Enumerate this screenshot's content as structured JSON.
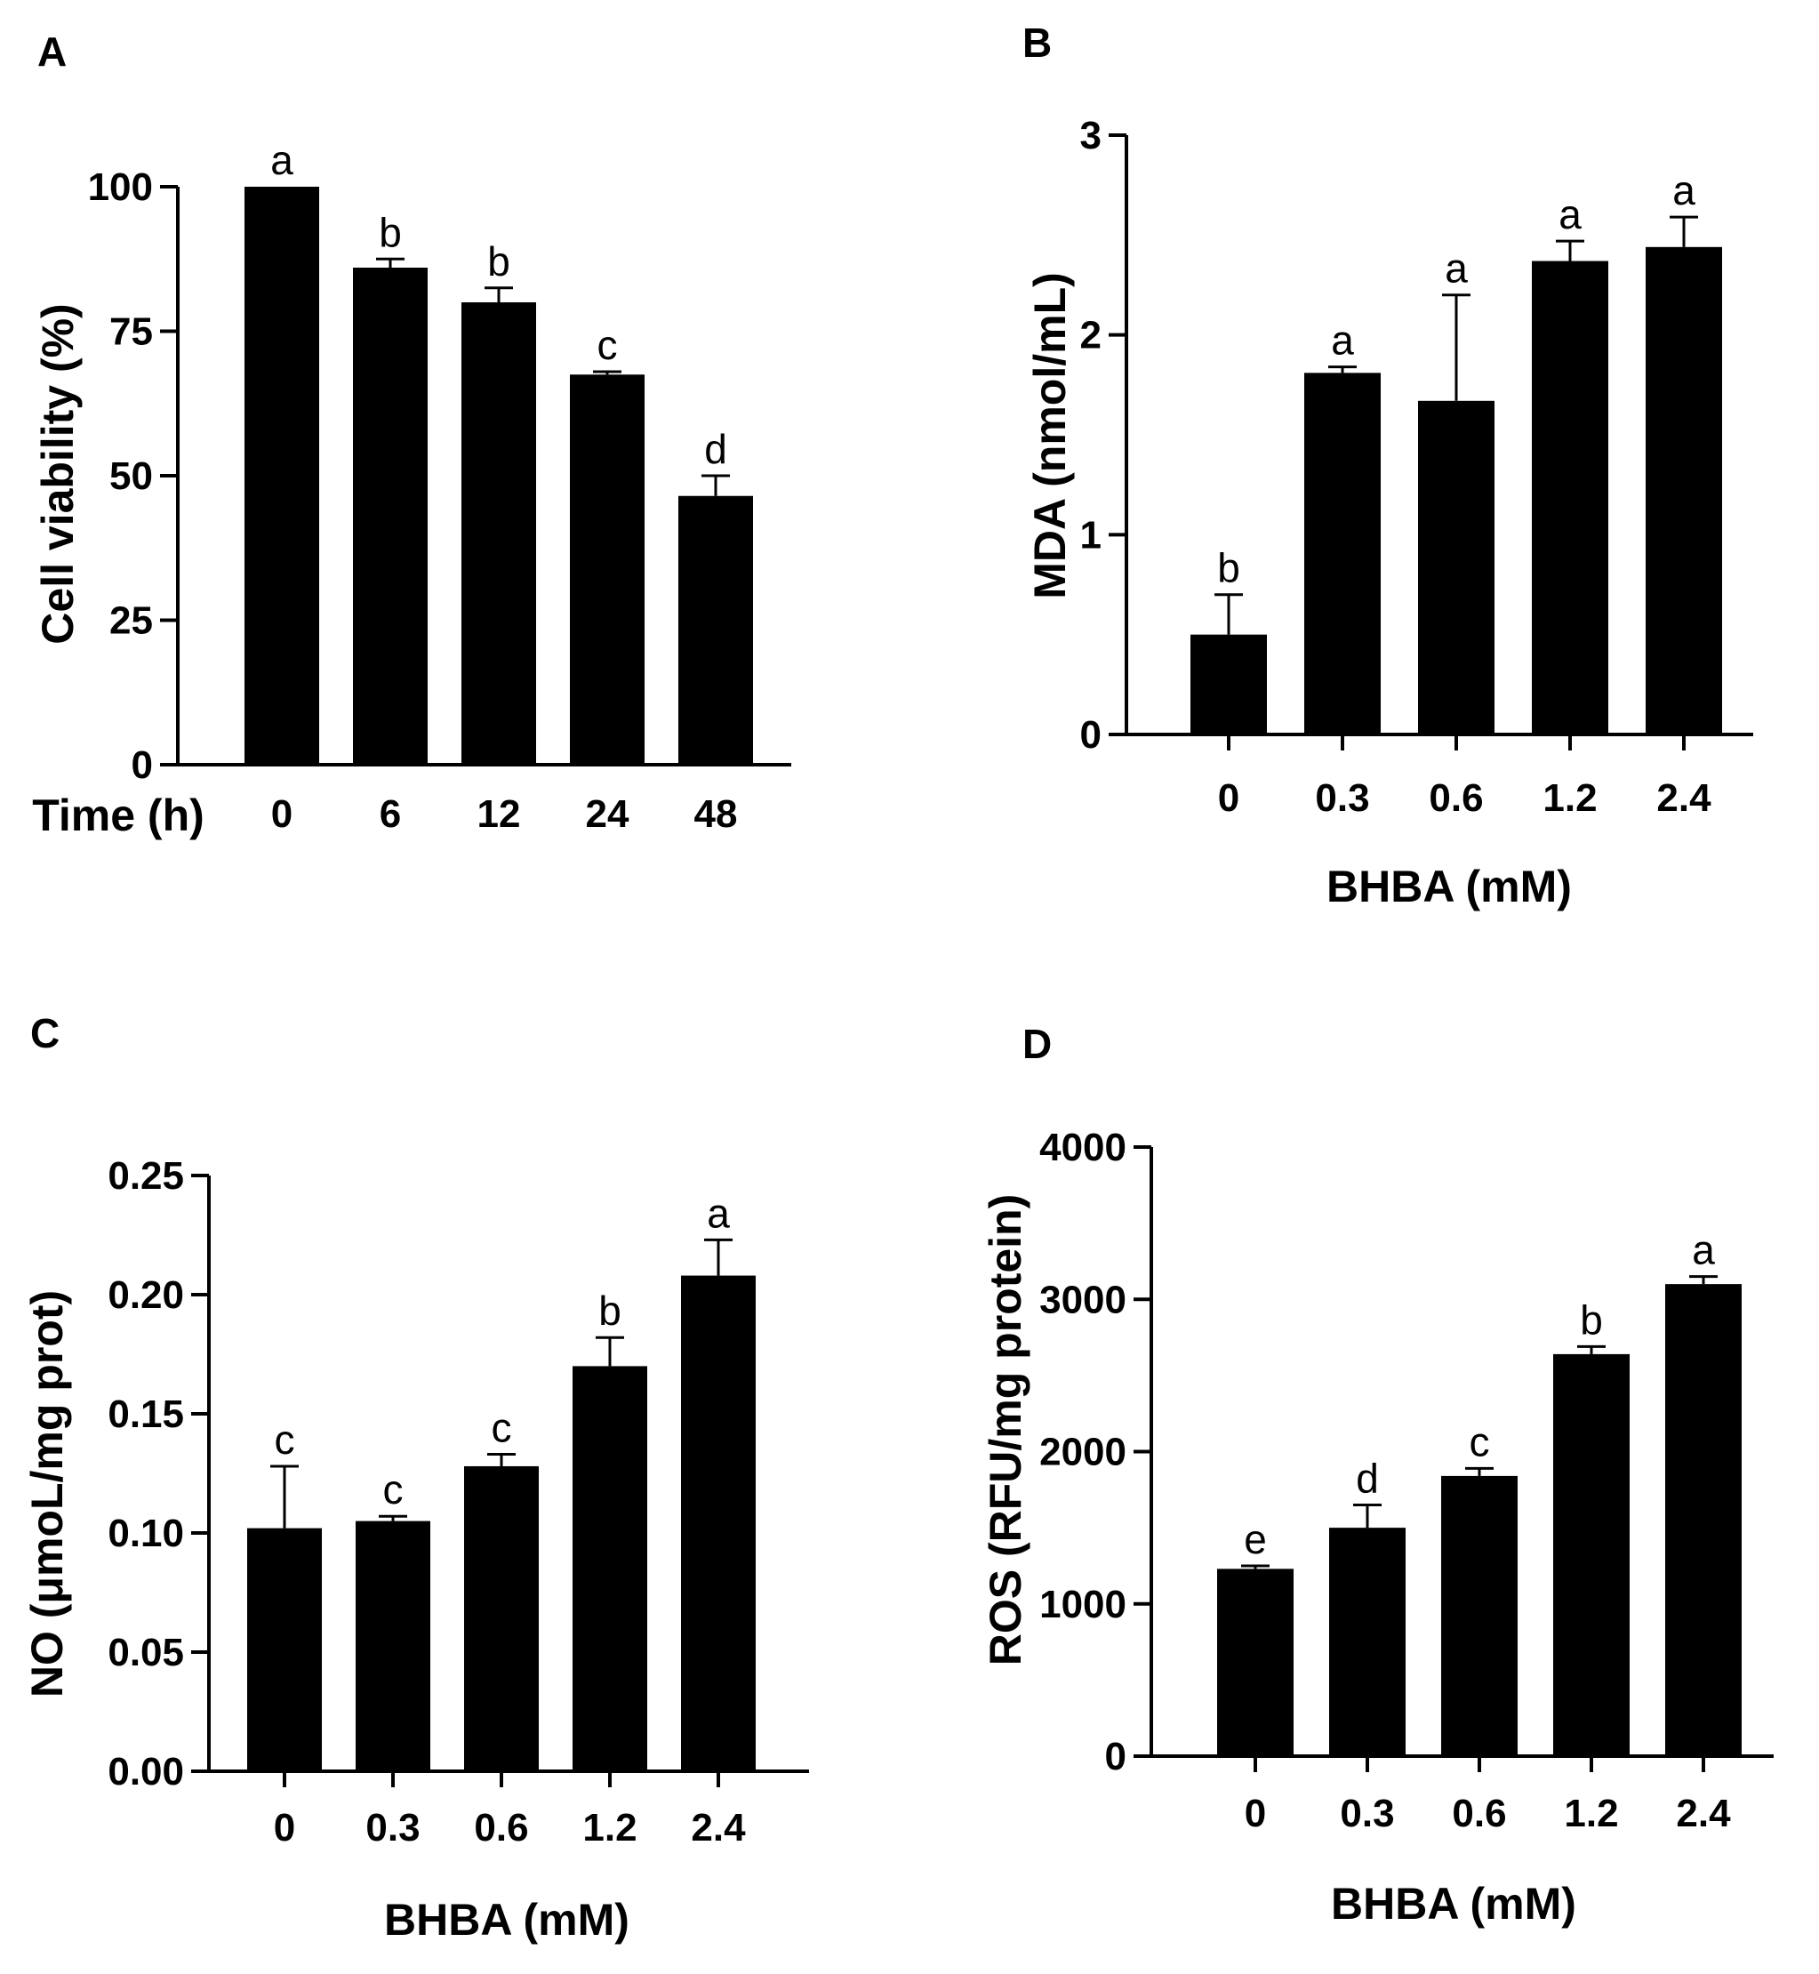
{
  "chart_data": [
    {
      "panel": "A",
      "type": "bar",
      "categories": [
        "0",
        "6",
        "12",
        "24",
        "48"
      ],
      "values": [
        100,
        86,
        80,
        67.5,
        46.5
      ],
      "errors": [
        0,
        1.5,
        2.5,
        0.5,
        3.5
      ],
      "sig": [
        "a",
        "b",
        "b",
        "c",
        "d"
      ],
      "xlabel": "Time (h)",
      "ylabel": "Cell viability (%)",
      "ylim": [
        0,
        100
      ],
      "yticks": [
        "0",
        "25",
        "50",
        "75",
        "100"
      ]
    },
    {
      "panel": "B",
      "type": "bar",
      "categories": [
        "0",
        "0.3",
        "0.6",
        "1.2",
        "2.4"
      ],
      "values": [
        0.5,
        1.81,
        1.67,
        2.37,
        2.44
      ],
      "errors": [
        0.2,
        0.03,
        0.53,
        0.1,
        0.15
      ],
      "sig": [
        "b",
        "a",
        "a",
        "a",
        "a"
      ],
      "xlabel": "BHBA (mM)",
      "ylabel": "MDA (nmol/mL)",
      "ylim": [
        0,
        3
      ],
      "yticks": [
        "0",
        "1",
        "2",
        "3"
      ]
    },
    {
      "panel": "C",
      "type": "bar",
      "categories": [
        "0",
        "0.3",
        "0.6",
        "1.2",
        "2.4"
      ],
      "values": [
        0.102,
        0.105,
        0.128,
        0.17,
        0.208
      ],
      "errors": [
        0.026,
        0.002,
        0.005,
        0.012,
        0.015
      ],
      "sig": [
        "c",
        "c",
        "c",
        "b",
        "a"
      ],
      "xlabel": "BHBA (mM)",
      "ylabel": "NO (μmoL/mg prot)",
      "ylim": [
        0,
        0.25
      ],
      "yticks": [
        "0.00",
        "0.05",
        "0.10",
        "0.15",
        "0.20",
        "0.25"
      ]
    },
    {
      "panel": "D",
      "type": "bar",
      "categories": [
        "0",
        "0.3",
        "0.6",
        "1.2",
        "2.4"
      ],
      "values": [
        1230,
        1500,
        1840,
        2640,
        3100
      ],
      "errors": [
        20,
        150,
        50,
        50,
        50
      ],
      "sig": [
        "e",
        "d",
        "c",
        "b",
        "a"
      ],
      "xlabel": "BHBA (mM)",
      "ylabel": "ROS (RFU/mg protein)",
      "ylim": [
        0,
        4000
      ],
      "yticks": [
        "0",
        "1000",
        "2000",
        "3000",
        "4000"
      ]
    }
  ]
}
